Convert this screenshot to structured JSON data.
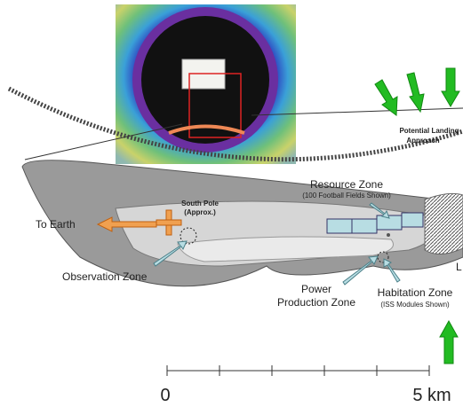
{
  "landing": [
    "Potential Landing",
    "Approach"
  ],
  "resource_zone": {
    "title": "Resource Zone",
    "note": "(100 Football Fields Shown)"
  },
  "south_pole": [
    "South Pole",
    "(Approx.)"
  ],
  "to_earth": "To Earth",
  "observation_zone": "Observation Zone",
  "power_zone": [
    "Power",
    "Production Zone"
  ],
  "habitation_zone": {
    "title": "Habitation Zone",
    "note": "(ISS Modules Shown)"
  },
  "edge_letter": "L",
  "scale_bar": {
    "start": 0,
    "end": "5 km"
  }
}
